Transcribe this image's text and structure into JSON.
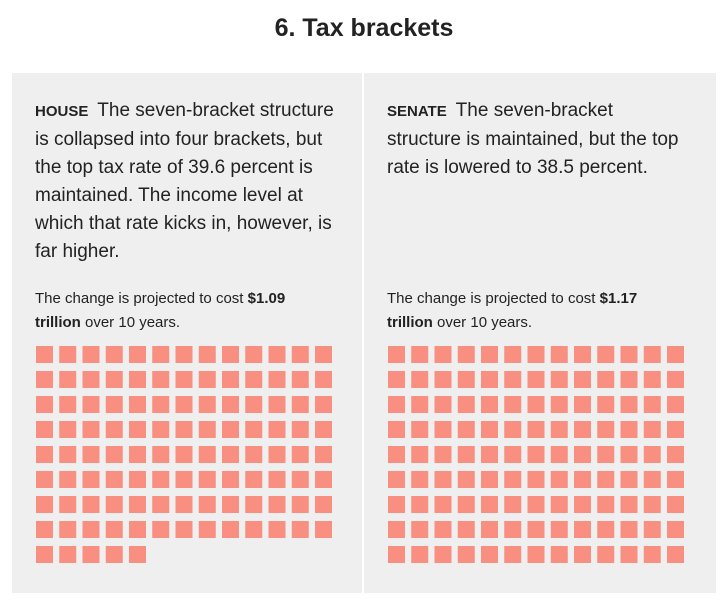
{
  "title": "6. Tax brackets",
  "square_color": "#f98f81",
  "panels": [
    {
      "label": "HOUSE",
      "description": "The seven-bracket structure is collapsed into four brackets, but the top tax rate of 39.6 percent is maintained. The income level at which that rate kicks in, however, is far higher.",
      "cost_intro": "The change is projected to cost",
      "cost": "$1.09 trillion",
      "cost_outro": "over 10 years.",
      "square_count": 109
    },
    {
      "label": "SENATE",
      "description": "The seven-bracket structure is maintained, but the top rate is lowered to 38.5 percent.",
      "cost_intro": "The change is projected to cost",
      "cost": "$1.17 trillion",
      "cost_outro": "over 10 years.",
      "square_count": 117
    }
  ]
}
